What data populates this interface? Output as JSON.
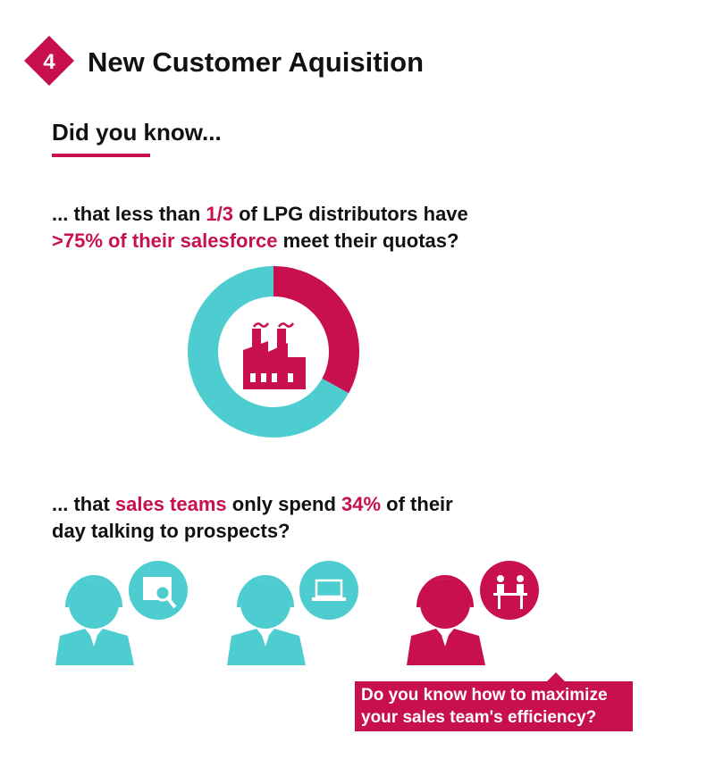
{
  "header": {
    "number": "4",
    "title": "New Customer Aquisition"
  },
  "intro": "Did you know...",
  "fact_1": {
    "lines": [
      [
        {
          "text": "... that less than "
        },
        {
          "text": "1/3",
          "emphasis": true
        },
        {
          "text": " of LPG distributors have"
        }
      ],
      [
        {
          "text": ">75% of their salesforce",
          "emphasis": true
        },
        {
          "text": " meet their quotas?"
        }
      ]
    ]
  },
  "chart_data": {
    "type": "pie",
    "values": [
      33,
      67
    ],
    "colors": [
      "#c8104e",
      "#4ecdd0"
    ]
  },
  "fact_2": {
    "lines": [
      [
        {
          "text": "... that "
        },
        {
          "text": "sales teams",
          "emphasis": true
        },
        {
          "text": " only spend "
        },
        {
          "text": "34%",
          "emphasis": true
        },
        {
          "text": " of their"
        }
      ],
      [
        {
          "text": "day talking to prospects?"
        }
      ]
    ]
  },
  "callout": {
    "lines": [
      "Do you know how to maximize",
      "your sales team's efficiency?"
    ]
  }
}
